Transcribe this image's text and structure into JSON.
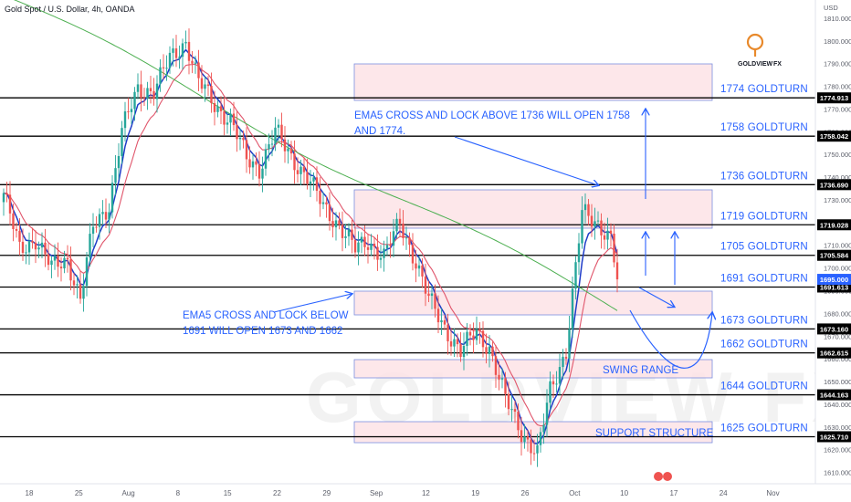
{
  "header": {
    "ticker_label": "Gold Spot / U.S. Dollar, 4h, OANDA",
    "currency": "USD"
  },
  "brand": {
    "name": "GOLDVIEW",
    "suffix": "FX",
    "accent_color": "#e8892b",
    "watermark": "GOLDVIEW FX"
  },
  "colors": {
    "candle_up": "#26a69a",
    "candle_down": "#ef5350",
    "ema_fast": "#1e3cc8",
    "ema_mid": "#e0556b",
    "ema_slow": "#4caf50",
    "annotation": "#2962ff",
    "zone_fill": "#fde3e6"
  },
  "chart_data": {
    "type": "candlestick",
    "title": "Gold Spot / U.S. Dollar, 4h, OANDA",
    "ylabel": "USD",
    "ylim": [
      1605,
      1818
    ],
    "y_ticks": [
      1610,
      1620,
      1630,
      1640,
      1650,
      1660,
      1670,
      1680,
      1690,
      1700,
      1710,
      1720,
      1730,
      1740,
      1750,
      1760,
      1770,
      1780,
      1790,
      1800,
      1810
    ],
    "x_ticks": [
      "18",
      "25",
      "Aug",
      "8",
      "15",
      "22",
      "29",
      "Sep",
      "12",
      "19",
      "26",
      "Oct",
      "10",
      "17",
      "24",
      "Nov"
    ],
    "current_price": 1695.0,
    "price_path": [
      [
        0,
        1733
      ],
      [
        5,
        1708
      ],
      [
        10,
        1713
      ],
      [
        15,
        1700
      ],
      [
        20,
        1704
      ],
      [
        24,
        1686
      ],
      [
        28,
        1718
      ],
      [
        33,
        1728
      ],
      [
        37,
        1760
      ],
      [
        42,
        1779
      ],
      [
        47,
        1778
      ],
      [
        52,
        1792
      ],
      [
        57,
        1800
      ],
      [
        61,
        1782
      ],
      [
        66,
        1772
      ],
      [
        71,
        1765
      ],
      [
        76,
        1748
      ],
      [
        80,
        1744
      ],
      [
        85,
        1760
      ],
      [
        90,
        1749
      ],
      [
        95,
        1740
      ],
      [
        100,
        1727
      ],
      [
        105,
        1719
      ],
      [
        110,
        1708
      ],
      [
        114,
        1712
      ],
      [
        119,
        1705
      ],
      [
        124,
        1720
      ],
      [
        129,
        1703
      ],
      [
        133,
        1686
      ],
      [
        138,
        1674
      ],
      [
        143,
        1663
      ],
      [
        148,
        1672
      ],
      [
        152,
        1665
      ],
      [
        157,
        1642
      ],
      [
        162,
        1628
      ],
      [
        167,
        1618
      ],
      [
        171,
        1646
      ],
      [
        176,
        1664
      ],
      [
        181,
        1724
      ],
      [
        186,
        1720
      ],
      [
        190,
        1713
      ],
      [
        192,
        1695
      ]
    ],
    "series": [
      {
        "name": "EMA5",
        "color": "#1e3cc8"
      },
      {
        "name": "EMA",
        "color": "#e0556b"
      },
      {
        "name": "EMA",
        "color": "#4caf50"
      }
    ],
    "levels": [
      {
        "label": "1774 GOLDTURN",
        "price": 1774.913,
        "tag": "1774.913"
      },
      {
        "label": "1758 GOLDTURN",
        "price": 1758.042,
        "tag": "1758.042"
      },
      {
        "label": "1736 GOLDTURN",
        "price": 1736.69,
        "tag": "1736.690"
      },
      {
        "label": "1719 GOLDTURN",
        "price": 1719.028,
        "tag": "1719.028"
      },
      {
        "label": "1705 GOLDTURN",
        "price": 1705.584,
        "tag": "1705.584"
      },
      {
        "label": "1691 GOLDTURN",
        "price": 1691.613,
        "tag": "1691.613"
      },
      {
        "label": "1673 GOLDTURN",
        "price": 1673.16,
        "tag": "1673.160"
      },
      {
        "label": "1662 GOLDTURN",
        "price": 1662.615,
        "tag": "1662.615"
      },
      {
        "label": "1644 GOLDTURN",
        "price": 1644.163,
        "tag": "1644.163"
      },
      {
        "label": "1625 GOLDTURN",
        "price": 1625.71,
        "tag": "1625.710"
      }
    ],
    "current_tag": "1695.000",
    "annotations": [
      {
        "lines": [
          "EMA5 CROSS AND LOCK ABOVE 1736 WILL OPEN 1758",
          "AND 1774."
        ]
      },
      {
        "lines": [
          "EMA5 CROSS AND LOCK BELOW",
          "1691 WILL OPEN 1673 AND 1662"
        ]
      }
    ],
    "zones": [
      {
        "label": ""
      },
      {
        "label": ""
      },
      {
        "label": ""
      },
      {
        "label": "SWING RANGE"
      },
      {
        "label": "SUPPORT STRUCTURE"
      }
    ],
    "grid": false
  }
}
